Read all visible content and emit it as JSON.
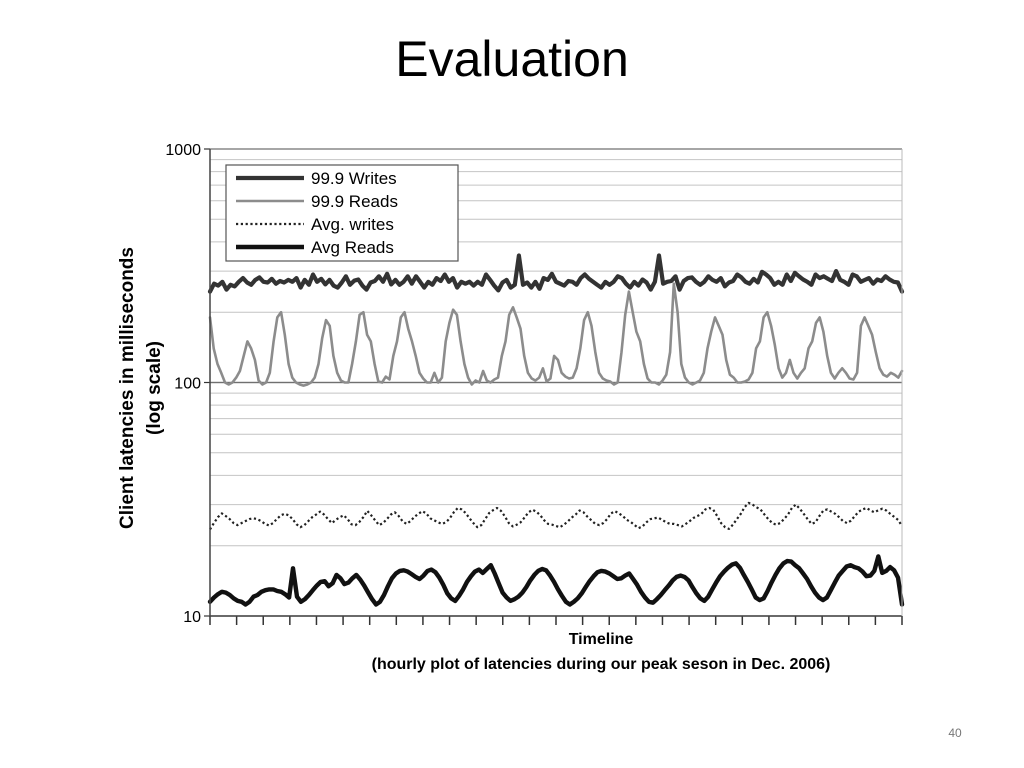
{
  "slide": {
    "title": "Evaluation",
    "page_number": "40"
  },
  "chart_data": {
    "type": "line",
    "xlabel": "Timeline",
    "xlabel_sub": "(hourly plot of latencies during our peak seson in Dec. 2006)",
    "ylabel": "Client latencies in milliseconds",
    "ylabel_sub": "(log scale)",
    "y_scale": "log",
    "ylim": [
      10,
      1000
    ],
    "yticks": [
      {
        "value": 10,
        "label": "10"
      },
      {
        "value": 100,
        "label": "100"
      },
      {
        "value": 1000,
        "label": "1000"
      }
    ],
    "grid": true,
    "legend_position": "top-left",
    "x_tick_count": 27,
    "series": [
      {
        "name": "99.9 Writes",
        "style": "thick-dark",
        "color": "#333333",
        "values": [
          245,
          265,
          260,
          270,
          250,
          262,
          258,
          270,
          280,
          268,
          262,
          275,
          282,
          270,
          268,
          278,
          265,
          272,
          268,
          275,
          270,
          280,
          255,
          275,
          262,
          290,
          270,
          278,
          263,
          275,
          260,
          255,
          268,
          285,
          262,
          273,
          276,
          260,
          250,
          268,
          272,
          285,
          270,
          292,
          263,
          275,
          262,
          270,
          285,
          265,
          285,
          270,
          255,
          270,
          262,
          280,
          272,
          290,
          270,
          280,
          255,
          270,
          265,
          270,
          260,
          270,
          262,
          290,
          275,
          260,
          248,
          268,
          275,
          255,
          262,
          350,
          262,
          268,
          255,
          270,
          252,
          280,
          275,
          292,
          270,
          265,
          260,
          272,
          270,
          262,
          280,
          290,
          278,
          270,
          262,
          255,
          270,
          262,
          270,
          285,
          280,
          265,
          255,
          270,
          260,
          276,
          268,
          250,
          270,
          350,
          265,
          270,
          272,
          285,
          250,
          272,
          280,
          282,
          270,
          262,
          270,
          285,
          275,
          270,
          280,
          258,
          268,
          272,
          290,
          282,
          270,
          265,
          278,
          268,
          298,
          290,
          280,
          262,
          270,
          262,
          290,
          272,
          295,
          285,
          276,
          270,
          262,
          290,
          280,
          285,
          278,
          272,
          300,
          275,
          270,
          262,
          290,
          285,
          270,
          275,
          280,
          265,
          276,
          272,
          285,
          276,
          270,
          268,
          245
        ]
      },
      {
        "name": "99.9 Reads",
        "style": "gray",
        "color": "#8c8c8c",
        "values": [
          190,
          140,
          120,
          110,
          100,
          98,
          100,
          105,
          112,
          130,
          150,
          140,
          125,
          102,
          98,
          100,
          110,
          150,
          190,
          200,
          160,
          120,
          105,
          100,
          98,
          97,
          98,
          100,
          105,
          120,
          155,
          185,
          175,
          130,
          110,
          102,
          100,
          100,
          120,
          150,
          195,
          200,
          160,
          150,
          120,
          101,
          100,
          106,
          103,
          130,
          150,
          190,
          200,
          170,
          150,
          130,
          110,
          104,
          100,
          100,
          110,
          100,
          105,
          150,
          180,
          205,
          195,
          150,
          120,
          105,
          98,
          102,
          100,
          112,
          102,
          100,
          103,
          105,
          130,
          150,
          195,
          210,
          190,
          170,
          130,
          110,
          104,
          102,
          105,
          115,
          101,
          104,
          130,
          125,
          110,
          106,
          104,
          105,
          115,
          140,
          185,
          200,
          175,
          135,
          110,
          104,
          102,
          101,
          98,
          100,
          135,
          195,
          245,
          200,
          165,
          150,
          120,
          104,
          100,
          100,
          98,
          102,
          108,
          135,
          265,
          200,
          120,
          105,
          100,
          98,
          100,
          102,
          110,
          140,
          165,
          190,
          175,
          160,
          125,
          108,
          105,
          100,
          100,
          101,
          103,
          110,
          140,
          150,
          190,
          200,
          175,
          145,
          115,
          105,
          110,
          125,
          110,
          104,
          110,
          115,
          140,
          150,
          180,
          190,
          165,
          130,
          110,
          104,
          110,
          115,
          110,
          104,
          103,
          110,
          175,
          190,
          175,
          160,
          135,
          115,
          108,
          106,
          110,
          108,
          105,
          112
        ]
      },
      {
        "name": "Avg. writes",
        "style": "dotted",
        "color": "#222222",
        "values": [
          23.5,
          25,
          26.5,
          27.5,
          26.8,
          26,
          25,
          24.5,
          25,
          25.5,
          26,
          26.2,
          26,
          25.5,
          24.8,
          24.4,
          25,
          26,
          27,
          27.4,
          27,
          26,
          24.7,
          24,
          24.5,
          25.5,
          26.5,
          27.2,
          28,
          27.2,
          26,
          25,
          25.8,
          26.5,
          27,
          26,
          24.7,
          24.5,
          25.3,
          26.5,
          28.2,
          27,
          25.7,
          24.5,
          25,
          26,
          27.2,
          27.8,
          26.8,
          25.4,
          24.8,
          25.5,
          26.6,
          27.4,
          28.1,
          27.5,
          26.2,
          25.7,
          25.2,
          24.8,
          25.2,
          26.2,
          27.8,
          29,
          28.6,
          27.6,
          26.2,
          25,
          24,
          24.5,
          26,
          27.6,
          28.4,
          29,
          28.2,
          26.7,
          25,
          24.2,
          24.6,
          25.2,
          26.4,
          27.8,
          28.5,
          28,
          27,
          25.7,
          24.8,
          24.6,
          24.3,
          24,
          24.6,
          25.4,
          26.4,
          27.2,
          28.3,
          27.8,
          26.6,
          25.7,
          24.8,
          24.5,
          25,
          26,
          27.5,
          28.1,
          27.5,
          26.8,
          25.8,
          25.3,
          24.5,
          23.8,
          24.2,
          25.2,
          26,
          26.2,
          26.4,
          25.8,
          25.2,
          24.8,
          24.8,
          24.5,
          24.2,
          24.8,
          25.5,
          26.3,
          26.8,
          27.4,
          28.6,
          29,
          28.5,
          26.8,
          25,
          24,
          23.6,
          24.6,
          26,
          27.4,
          29.3,
          30.5,
          30,
          29.2,
          28.6,
          27.2,
          26,
          25,
          24.6,
          25,
          26,
          27.2,
          29,
          30,
          28.8,
          27.4,
          26,
          24.8,
          25.2,
          26.8,
          28.3,
          28.6,
          28,
          27.4,
          26.5,
          25.5,
          25,
          25.6,
          26.8,
          28,
          28.6,
          29,
          28.3,
          27.8,
          28.4,
          28.8,
          28.3,
          27.4,
          26.6,
          25.8,
          24.3
        ]
      },
      {
        "name": "Avg Reads",
        "style": "thick-black",
        "color": "#111111",
        "values": [
          11.5,
          12,
          12.4,
          12.7,
          12.6,
          12.3,
          11.9,
          11.6,
          11.5,
          11.2,
          11.5,
          12.1,
          12.3,
          12.7,
          12.9,
          13,
          13,
          12.8,
          12.7,
          12.4,
          12,
          16,
          12.1,
          11.5,
          11.8,
          12.3,
          12.9,
          13.5,
          14,
          14.1,
          13.4,
          13.8,
          15,
          14.5,
          13.7,
          13.9,
          14.5,
          15,
          14.3,
          13.5,
          12.6,
          11.8,
          11.2,
          11.5,
          12.3,
          13.4,
          14.5,
          15.2,
          15.6,
          15.7,
          15.5,
          15.1,
          14.7,
          14.4,
          14.9,
          15.6,
          15.8,
          15.4,
          14.6,
          13.6,
          12.5,
          11.9,
          11.6,
          12.2,
          13,
          14,
          14.8,
          15.5,
          15.8,
          15.3,
          15.9,
          16.5,
          15.2,
          13.8,
          12.6,
          12,
          11.6,
          11.8,
          12.1,
          12.6,
          13.3,
          14.2,
          15,
          15.6,
          15.9,
          15.7,
          14.9,
          14,
          13,
          12.2,
          11.5,
          11.2,
          11.5,
          11.9,
          12.5,
          13.3,
          14.1,
          14.8,
          15.4,
          15.6,
          15.5,
          15.2,
          14.8,
          14.4,
          14.5,
          14.9,
          15.2,
          14.4,
          13.6,
          12.7,
          12,
          11.5,
          11.4,
          11.8,
          12.3,
          12.9,
          13.5,
          14.2,
          14.7,
          14.9,
          14.7,
          14.2,
          13.3,
          12.5,
          11.9,
          11.6,
          12.1,
          13,
          13.9,
          14.8,
          15.5,
          16.1,
          16.6,
          16.8,
          16.1,
          15,
          14,
          13,
          12,
          11.7,
          11.9,
          12.8,
          13.9,
          15,
          16,
          16.8,
          17.2,
          17.1,
          16.5,
          16,
          15.2,
          14.4,
          13.4,
          12.6,
          12,
          11.7,
          12,
          12.9,
          13.9,
          14.9,
          15.6,
          16.3,
          16.5,
          16.2,
          16,
          15.5,
          14.8,
          14.9,
          15.6,
          18,
          15.3,
          15.6,
          16.2,
          15.7,
          14.6,
          11.2
        ]
      }
    ]
  }
}
